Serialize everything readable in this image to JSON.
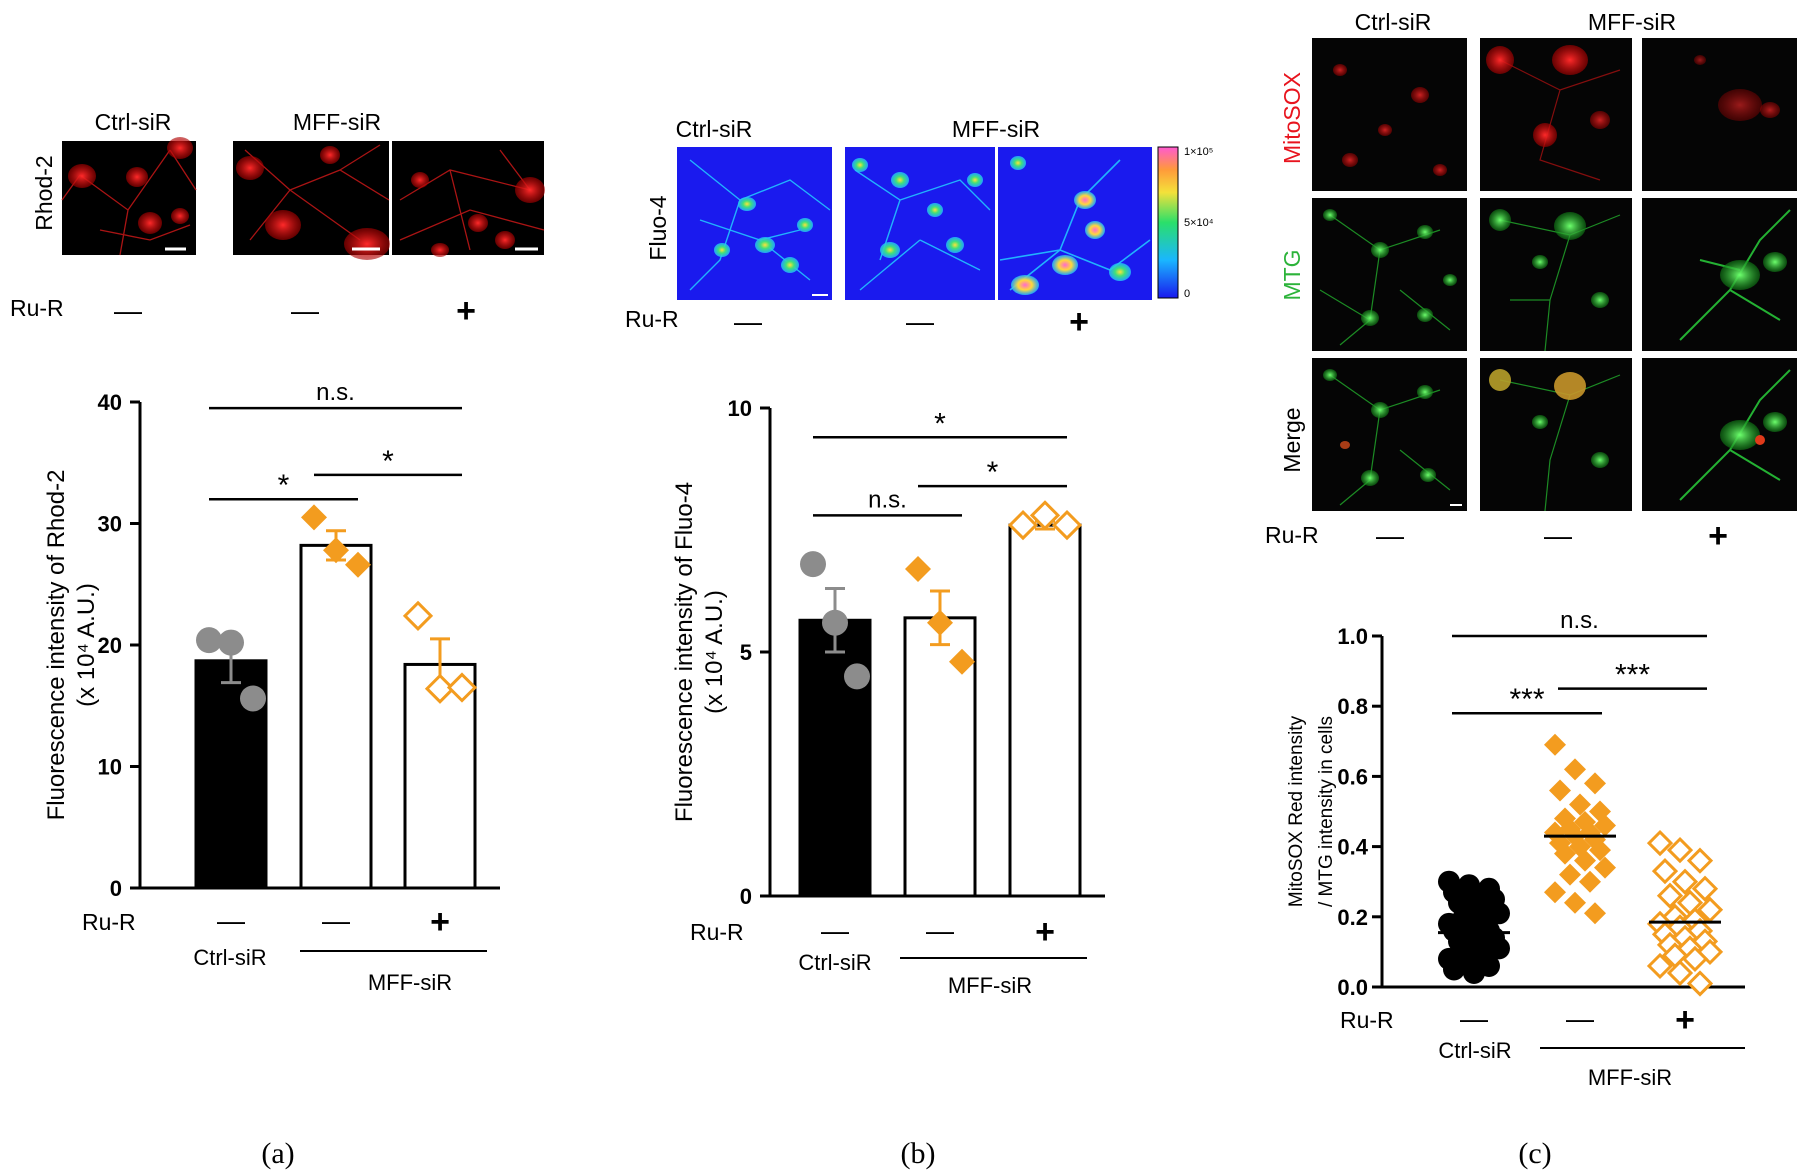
{
  "colors": {
    "orange": "#f39c1f",
    "gray": "#8c8c8c",
    "black": "#000000",
    "micro_red": "#e8141e",
    "micro_green": "#30d040",
    "heat_blue": "#1a1aee"
  },
  "panel_a": {
    "letter": "(a)",
    "micrographs": {
      "stain": "Rhod-2",
      "group_ctrl": "Ctrl-siR",
      "group_mff": "MFF-siR",
      "rur_label": "Ru-R",
      "rur_signs": [
        "—",
        "—",
        "+"
      ]
    }
  },
  "panel_b": {
    "letter": "(b)",
    "micrographs": {
      "stain": "Fluo-4",
      "group_ctrl": "Ctrl-siR",
      "group_mff": "MFF-siR",
      "rur_label": "Ru-R",
      "rur_signs": [
        "—",
        "—",
        "+"
      ],
      "colorbar_ticks": [
        "1×10⁵",
        "5×10⁴",
        "0"
      ]
    }
  },
  "panel_c": {
    "letter": "(c)",
    "micrographs": {
      "group_ctrl": "Ctrl-siR",
      "group_mff": "MFF-siR",
      "rows": [
        "MitoSOX",
        "MTG",
        "Merge"
      ],
      "rur_label": "Ru-R",
      "rur_signs": [
        "—",
        "—",
        "+"
      ]
    }
  },
  "chart_data": [
    {
      "id": "a",
      "type": "bar",
      "ylabel_line1": "Fluorescence intensity of Rhod-2",
      "ylabel_line2": "(x 10⁴  A.U.)",
      "ylim": [
        0,
        40
      ],
      "yticks": [
        "0",
        "10",
        "20",
        "30",
        "40"
      ],
      "bars": [
        {
          "rur": "—",
          "group": "Ctrl-siR",
          "mean": 18.7,
          "sem": 1.8,
          "fill": "#000000",
          "points": [
            20.4,
            20.2,
            15.6
          ],
          "marker": "gray-circle"
        },
        {
          "rur": "—",
          "group": "MFF-siR",
          "mean": 28.2,
          "sem": 1.2,
          "fill": "#ffffff",
          "points": [
            30.5,
            27.8,
            26.6
          ],
          "marker": "orange-diamond"
        },
        {
          "rur": "+",
          "group": "MFF-siR",
          "mean": 18.4,
          "sem": 2.1,
          "fill": "#ffffff",
          "points": [
            22.4,
            16.4,
            16.5
          ],
          "marker": "orange-diamond-open"
        }
      ],
      "rur_label": "Ru-R",
      "group_ctrl": "Ctrl-siR",
      "group_mff": "MFF-siR",
      "significance": [
        {
          "from": 0,
          "to": 2,
          "y": 39.5,
          "text": "n.s."
        },
        {
          "from": 0,
          "to": 1,
          "y": 32.0,
          "text": "*"
        },
        {
          "from": 1,
          "to": 2,
          "y": 34.0,
          "text": "*"
        }
      ]
    },
    {
      "id": "b",
      "type": "bar",
      "ylabel_line1": "Fluorescence intensity of Fluo-4",
      "ylabel_line2": "(x 10⁴  A.U.)",
      "ylim": [
        0,
        10
      ],
      "yticks": [
        "0",
        "5",
        "10"
      ],
      "bars": [
        {
          "rur": "—",
          "group": "Ctrl-siR",
          "mean": 5.65,
          "sem": 0.65,
          "fill": "#000000",
          "points": [
            6.8,
            5.6,
            4.5
          ],
          "marker": "gray-circle"
        },
        {
          "rur": "—",
          "group": "MFF-siR",
          "mean": 5.7,
          "sem": 0.55,
          "fill": "#ffffff",
          "points": [
            6.7,
            5.6,
            4.8
          ],
          "marker": "orange-diamond"
        },
        {
          "rur": "+",
          "group": "MFF-siR",
          "mean": 7.6,
          "sem": 0.08,
          "fill": "#ffffff",
          "points": [
            7.6,
            7.8,
            7.6
          ],
          "marker": "orange-diamond-open"
        }
      ],
      "rur_label": "Ru-R",
      "group_ctrl": "Ctrl-siR",
      "group_mff": "MFF-siR",
      "significance": [
        {
          "from": 0,
          "to": 2,
          "y": 9.4,
          "text": "*"
        },
        {
          "from": 1,
          "to": 2,
          "y": 8.4,
          "text": "*"
        },
        {
          "from": 0,
          "to": 1,
          "y": 7.8,
          "text": "n.s."
        }
      ]
    },
    {
      "id": "c",
      "type": "scatter",
      "ylabel_line1": "MitoSOX Red intensity",
      "ylabel_line2": "/ MTG  intensity in cells",
      "ylim": [
        0,
        1.0
      ],
      "yticks": [
        "0.0",
        "0.2",
        "0.4",
        "0.6",
        "0.8",
        "1.0"
      ],
      "groups": [
        {
          "rur": "—",
          "group": "Ctrl-siR",
          "mean": 0.155,
          "marker": "black-circle",
          "points": [
            0.3,
            0.29,
            0.28,
            0.27,
            0.26,
            0.25,
            0.24,
            0.22,
            0.21,
            0.2,
            0.19,
            0.18,
            0.17,
            0.16,
            0.16,
            0.15,
            0.14,
            0.13,
            0.12,
            0.11,
            0.1,
            0.09,
            0.08,
            0.07,
            0.06,
            0.05,
            0.04
          ]
        },
        {
          "rur": "—",
          "group": "MFF-siR",
          "mean": 0.43,
          "marker": "orange-diamond",
          "points": [
            0.69,
            0.62,
            0.58,
            0.56,
            0.52,
            0.5,
            0.48,
            0.47,
            0.46,
            0.45,
            0.44,
            0.44,
            0.43,
            0.42,
            0.41,
            0.4,
            0.39,
            0.38,
            0.36,
            0.34,
            0.32,
            0.3,
            0.27,
            0.24,
            0.21
          ]
        },
        {
          "rur": "+",
          "group": "MFF-siR",
          "mean": 0.185,
          "marker": "orange-diamond-open",
          "points": [
            0.41,
            0.39,
            0.36,
            0.33,
            0.3,
            0.28,
            0.26,
            0.24,
            0.22,
            0.2,
            0.19,
            0.18,
            0.17,
            0.16,
            0.15,
            0.14,
            0.13,
            0.12,
            0.11,
            0.1,
            0.09,
            0.08,
            0.06,
            0.04,
            0.01
          ]
        }
      ],
      "rur_label": "Ru-R",
      "group_ctrl": "Ctrl-siR",
      "group_mff": "MFF-siR",
      "significance": [
        {
          "from": 0,
          "to": 2,
          "y": 1.0,
          "text": "n.s."
        },
        {
          "from": 0,
          "to": 1,
          "y": 0.78,
          "text": "***"
        },
        {
          "from": 1,
          "to": 2,
          "y": 0.85,
          "text": "***"
        }
      ]
    }
  ]
}
